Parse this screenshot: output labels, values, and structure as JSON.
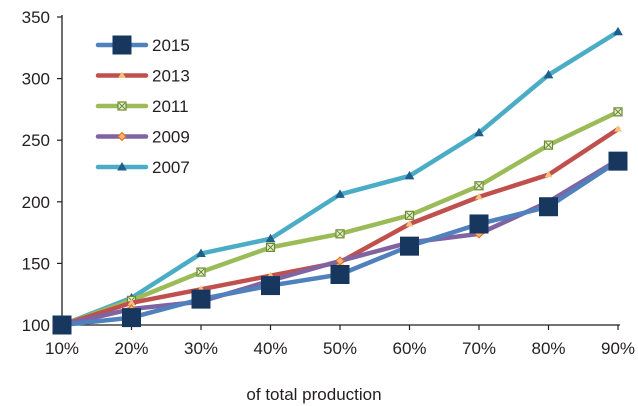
{
  "chart_data": {
    "type": "line",
    "title": "",
    "xlabel": "of total production",
    "ylabel": "",
    "categories": [
      "10%",
      "20%",
      "30%",
      "40%",
      "50%",
      "60%",
      "70%",
      "80%",
      "90%"
    ],
    "ylim": [
      100,
      350
    ],
    "yticks": [
      "100",
      "150",
      "200",
      "250",
      "300",
      "350"
    ],
    "grid": false,
    "legend_position": "top-left",
    "series": [
      {
        "name": "2015",
        "color": "#17375e",
        "line_color": "#4f81bd",
        "marker": "square",
        "values": [
          100,
          106,
          121,
          132,
          141,
          164,
          182,
          196,
          233
        ]
      },
      {
        "name": "2013",
        "color": "#c0504d",
        "line_color": "#c0504d",
        "marker": "small-triangle",
        "values": [
          100,
          118,
          129,
          140,
          151,
          182,
          204,
          222,
          259
        ]
      },
      {
        "name": "2011",
        "color": "#9bbb59",
        "line_color": "#9bbb59",
        "marker": "square-x",
        "values": [
          100,
          120,
          143,
          163,
          174,
          189,
          213,
          246,
          273
        ]
      },
      {
        "name": "2009",
        "color": "#8064a2",
        "line_color": "#8064a2",
        "marker": "diamond",
        "values": [
          100,
          113,
          119,
          136,
          152,
          167,
          174,
          200,
          234
        ]
      },
      {
        "name": "2007",
        "color": "#4bacc6",
        "line_color": "#4bacc6",
        "marker": "triangle",
        "values": [
          100,
          122,
          158,
          170,
          206,
          221,
          256,
          303,
          338
        ]
      }
    ]
  }
}
